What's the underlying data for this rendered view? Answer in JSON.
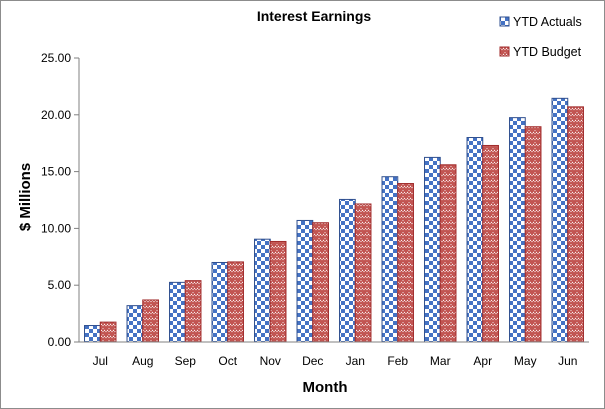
{
  "chart_data": {
    "type": "bar",
    "title": "Interest Earnings",
    "xlabel": "Month",
    "ylabel": "$ Millions",
    "categories": [
      "Jul",
      "Aug",
      "Sep",
      "Oct",
      "Nov",
      "Dec",
      "Jan",
      "Feb",
      "Mar",
      "Apr",
      "May",
      "Jun"
    ],
    "series": [
      {
        "name": "YTD Actuals",
        "color": "#4472c4",
        "pattern": "checkerboard",
        "values": [
          1.45,
          3.2,
          5.25,
          7.0,
          9.05,
          10.7,
          12.55,
          14.55,
          16.25,
          18.0,
          19.75,
          21.45
        ]
      },
      {
        "name": "YTD Budget",
        "color": "#c0504d",
        "pattern": "zigzag",
        "values": [
          1.75,
          3.7,
          5.4,
          7.05,
          8.85,
          10.5,
          12.15,
          13.95,
          15.6,
          17.3,
          18.95,
          20.7
        ]
      }
    ],
    "ylim": [
      0,
      25
    ],
    "yticks": [
      "0.00",
      "5.00",
      "10.00",
      "15.00",
      "20.00",
      "25.00"
    ],
    "grid": false,
    "legend": "top-right"
  }
}
